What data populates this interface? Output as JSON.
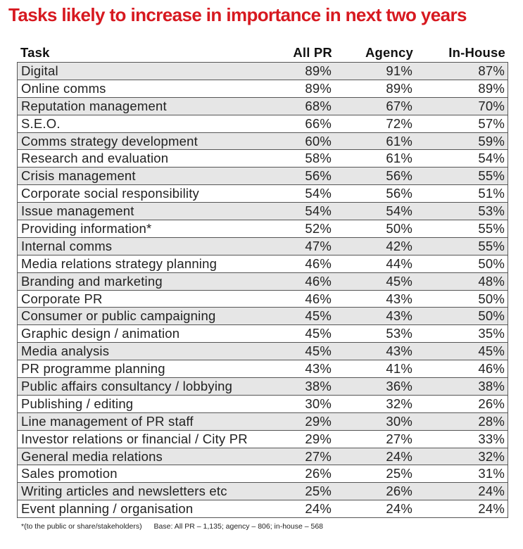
{
  "title": "Tasks likely to increase in importance in next two years",
  "chart_data": {
    "type": "table",
    "columns": [
      "Task",
      "All PR",
      "Agency",
      "In-House"
    ],
    "rows": [
      [
        "Digital",
        "89%",
        "91%",
        "87%"
      ],
      [
        "Online comms",
        "89%",
        "89%",
        "89%"
      ],
      [
        "Reputation management",
        "68%",
        "67%",
        "70%"
      ],
      [
        "S.E.O.",
        "66%",
        "72%",
        "57%"
      ],
      [
        "Comms strategy development",
        "60%",
        "61%",
        "59%"
      ],
      [
        "Research and evaluation",
        "58%",
        "61%",
        "54%"
      ],
      [
        "Crisis management",
        "56%",
        "56%",
        "55%"
      ],
      [
        "Corporate social responsibility",
        "54%",
        "56%",
        "51%"
      ],
      [
        "Issue management",
        "54%",
        "54%",
        "53%"
      ],
      [
        "Providing information*",
        "52%",
        "50%",
        "55%"
      ],
      [
        "Internal comms",
        "47%",
        "42%",
        "55%"
      ],
      [
        "Media relations strategy planning",
        "46%",
        "44%",
        "50%"
      ],
      [
        "Branding and marketing",
        "46%",
        "45%",
        "48%"
      ],
      [
        "Corporate PR",
        "46%",
        "43%",
        "50%"
      ],
      [
        "Consumer or public campaigning",
        "45%",
        "43%",
        "50%"
      ],
      [
        "Graphic design / animation",
        "45%",
        "53%",
        "35%"
      ],
      [
        "Media analysis",
        "45%",
        "43%",
        "45%"
      ],
      [
        "PR programme planning",
        "43%",
        "41%",
        "46%"
      ],
      [
        "Public affairs consultancy / lobbying",
        "38%",
        "36%",
        "38%"
      ],
      [
        "Publishing / editing",
        "30%",
        "32%",
        "26%"
      ],
      [
        "Line management of PR staff",
        "29%",
        "30%",
        "28%"
      ],
      [
        "Investor relations or financial / City PR",
        "29%",
        "27%",
        "33%"
      ],
      [
        "General media relations",
        "27%",
        "24%",
        "32%"
      ],
      [
        "Sales promotion",
        "26%",
        "25%",
        "31%"
      ],
      [
        "Writing articles and newsletters etc",
        "25%",
        "26%",
        "24%"
      ],
      [
        "Event planning / organisation",
        "24%",
        "24%",
        "24%"
      ]
    ]
  },
  "footnote": {
    "note": "*(to the public or share/stakeholders)",
    "base": "Base: All PR – 1,135; agency – 806; in-house – 568"
  },
  "colors": {
    "title": "#d71920",
    "alt_row": "#e6e6e6"
  }
}
